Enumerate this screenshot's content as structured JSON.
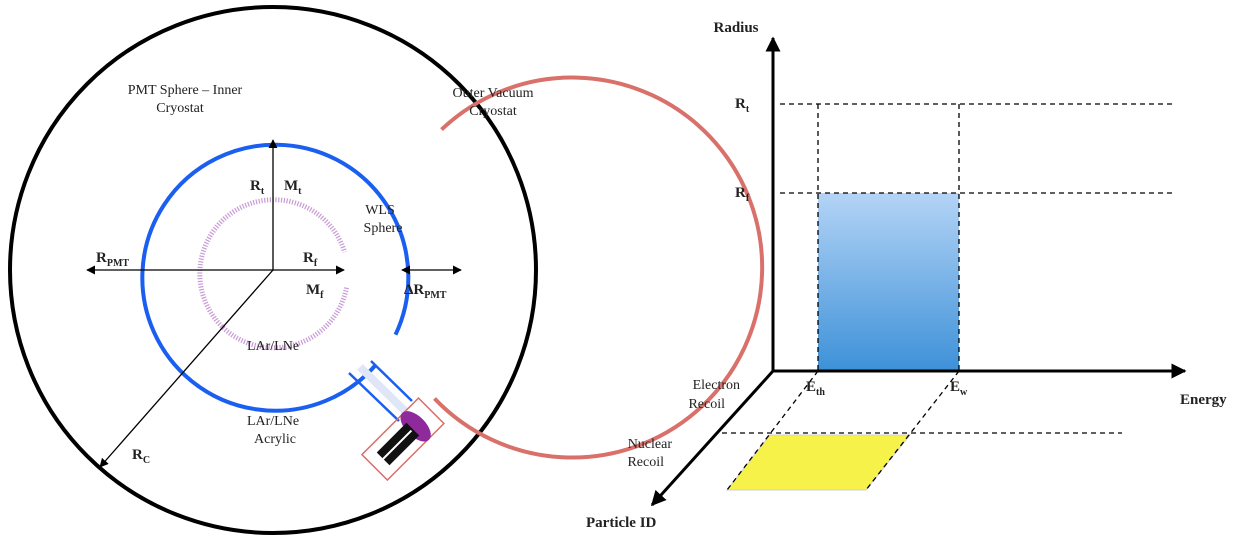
{
  "colors": {
    "outer_cryostat": "#000000",
    "pmt_sphere": "#d9706a",
    "wls_sphere": "#1a5ff0",
    "inner_volume": "#c89ad6",
    "pmt_body": "#8e2a9c",
    "pmt_base": "#111111",
    "signal_region_top": "#b4d4f6",
    "signal_region_bottom": "#3d91d8",
    "nr_region": "#f7f24a"
  },
  "left_diagram": {
    "pmt_sphere_label_line1": "PMT Sphere – Inner",
    "pmt_sphere_label_line2": "Cryostat",
    "outer_vacuum_label_line1": "Outer Vacuum",
    "outer_vacuum_label_line2": "Cryostat",
    "wls_label_line1": "WLS",
    "wls_label_line2": "Sphere",
    "rt_main": "R",
    "rt_sub": "t",
    "mt_main": "M",
    "mt_sub": "t",
    "rf_main": "R",
    "rf_sub": "f",
    "mf_main": "M",
    "mf_sub": "f",
    "rpmt_main": "R",
    "rpmt_sub": "PMT",
    "drpmt_main": "ΔR",
    "drpmt_sub": "PMT",
    "rc_main": "R",
    "rc_sub": "C",
    "inner_fill_label": "LAr/LNe",
    "outer_fill_label_line1": "LAr/LNe",
    "outer_fill_label_line2": "Acrylic"
  },
  "right_diagram": {
    "radius_axis_label": "Radius",
    "energy_axis_label": "Energy",
    "pid_axis_label": "Particle ID",
    "rt_main": "R",
    "rt_sub": "t",
    "rf_main": "R",
    "rf_sub": "f",
    "eth_main": "E",
    "eth_sub": "th",
    "ew_main": "E",
    "ew_sub": "w",
    "electron_recoil_line1": "Electron",
    "electron_recoil_line2": "Recoil",
    "nuclear_recoil_line1": "Nuclear",
    "nuclear_recoil_line2": "Recoil"
  }
}
